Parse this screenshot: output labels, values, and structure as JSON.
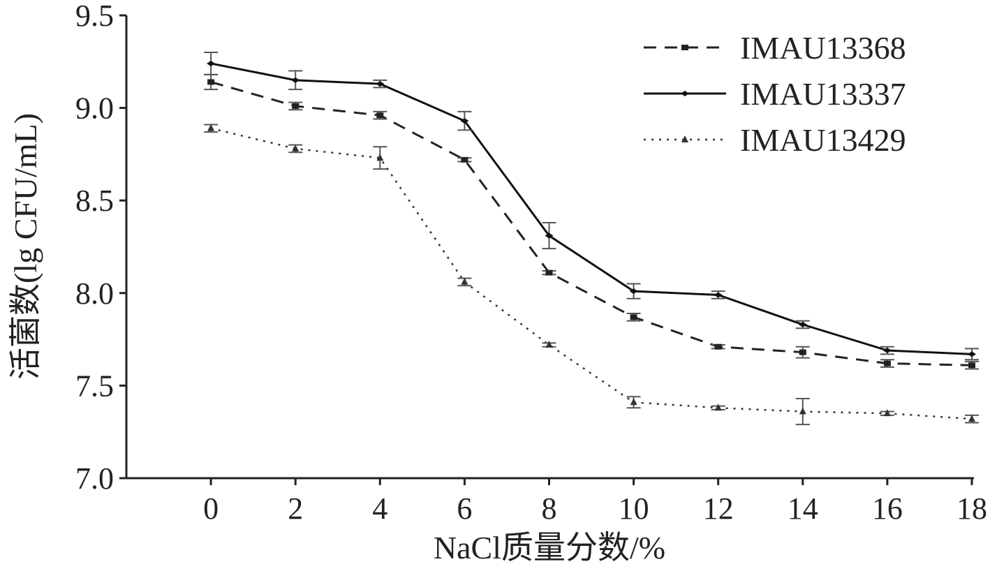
{
  "chart_data": {
    "type": "line",
    "xlabel": "NaCl质量分数/%",
    "ylabel": "活菌数(lg CFU/mL)",
    "x": [
      0,
      2,
      4,
      6,
      8,
      10,
      12,
      14,
      16,
      18
    ],
    "xlim": [
      -2,
      18
    ],
    "xticks": [
      0,
      2,
      4,
      6,
      8,
      10,
      12,
      14,
      16,
      18
    ],
    "ylim": [
      7.0,
      9.5
    ],
    "yticks": [
      {
        "value": 7.0,
        "label": "7.0"
      },
      7.5,
      {
        "value": 8.0,
        "label": "8.0"
      },
      8.5,
      {
        "value": 9.0,
        "label": "9.0"
      },
      9.5
    ],
    "legend": "upper right",
    "series": [
      {
        "name": "IMAU13368",
        "color": "#222222",
        "line_style": "dashed",
        "marker": "square",
        "values": [
          9.14,
          9.01,
          8.96,
          8.72,
          8.11,
          7.87,
          7.71,
          7.68,
          7.62,
          7.61
        ],
        "errors": [
          0.04,
          0.02,
          0.02,
          0.01,
          0.01,
          0.02,
          0.01,
          0.03,
          0.02,
          0.02
        ]
      },
      {
        "name": "IMAU13337",
        "color": "#111111",
        "line_style": "solid",
        "marker": "diamond",
        "values": [
          9.24,
          9.15,
          9.13,
          8.93,
          8.31,
          8.01,
          7.99,
          7.83,
          7.69,
          7.67
        ],
        "errors": [
          0.06,
          0.05,
          0.02,
          0.05,
          0.07,
          0.04,
          0.02,
          0.02,
          0.02,
          0.03
        ]
      },
      {
        "name": "IMAU13429",
        "color": "#333333",
        "line_style": "dotted",
        "marker": "triangle",
        "values": [
          8.89,
          8.78,
          8.73,
          8.06,
          7.72,
          7.41,
          7.38,
          7.36,
          7.35,
          7.32
        ],
        "errors": [
          0.02,
          0.02,
          0.06,
          0.02,
          0.01,
          0.03,
          0.01,
          0.07,
          0.01,
          0.02
        ]
      }
    ]
  }
}
